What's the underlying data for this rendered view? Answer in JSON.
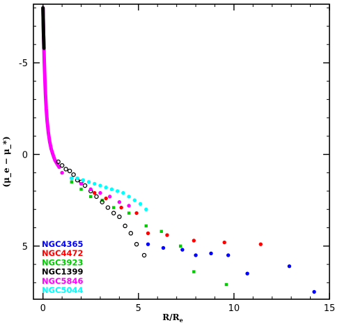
{
  "chart_data": {
    "type": "scatter",
    "title": "",
    "xlabel": "R/R_e",
    "xlabel_main": "R/R",
    "xlabel_sub": "e",
    "ylabel": "(μ_e − μ_*)",
    "xlim": [
      -0.5,
      15
    ],
    "ylim": [
      -8.2,
      7.9
    ],
    "y_inverted": true,
    "x_ticks": [
      0,
      5,
      10,
      15
    ],
    "y_ticks": [
      -5,
      0,
      5
    ],
    "x_tick_labels": [
      "0",
      "5",
      "10",
      "15"
    ],
    "y_tick_labels": [
      "-5",
      "0",
      "5"
    ],
    "legend_position": "bottom-left",
    "series": [
      {
        "name": "NGC4365",
        "color": "#0000ff",
        "marker": "filled-circle",
        "x": [
          5.5,
          6.3,
          7.3,
          8.0,
          8.8,
          9.7,
          10.7,
          12.9,
          14.2
        ],
        "y": [
          4.9,
          5.1,
          5.2,
          5.5,
          5.4,
          5.5,
          6.5,
          6.1,
          7.5
        ]
      },
      {
        "name": "NGC4472",
        "color": "#ff0000",
        "marker": "filled-circle",
        "x": [
          2.7,
          3.3,
          4.1,
          4.9,
          5.5,
          6.5,
          7.9,
          9.5,
          11.4
        ],
        "y": [
          2.1,
          2.4,
          2.9,
          3.2,
          4.3,
          4.4,
          4.7,
          4.8,
          4.9
        ]
      },
      {
        "name": "NGC3923",
        "color": "#00cc00",
        "marker": "filled-square",
        "x": [
          1.5,
          2.0,
          2.5,
          3.1,
          3.7,
          4.5,
          5.4,
          6.2,
          7.2,
          7.9,
          9.6
        ],
        "y": [
          1.5,
          1.9,
          2.3,
          2.5,
          2.9,
          3.2,
          3.9,
          4.2,
          5.0,
          6.4,
          7.1
        ]
      },
      {
        "name": "NGC1399",
        "color": "#000000",
        "marker": "open-circle",
        "x": [
          0.8,
          1.0,
          1.2,
          1.4,
          1.6,
          1.8,
          2.0,
          2.2,
          2.5,
          2.8,
          3.1,
          3.4,
          3.7,
          4.0,
          4.3,
          4.6,
          4.9,
          5.3
        ],
        "y": [
          0.4,
          0.6,
          0.8,
          0.9,
          1.1,
          1.4,
          1.5,
          1.7,
          2.0,
          2.3,
          2.6,
          2.9,
          3.2,
          3.4,
          3.9,
          4.3,
          4.9,
          5.5
        ]
      },
      {
        "name": "NGC5846",
        "color": "#ff00ff",
        "marker": "filled-circle",
        "x": [
          1.0,
          1.5,
          2.0,
          2.5,
          3.0,
          3.5,
          4.0,
          4.5
        ],
        "y": [
          1.0,
          1.3,
          1.6,
          1.9,
          2.1,
          2.3,
          2.6,
          2.8
        ]
      },
      {
        "name": "NGC5044",
        "color": "#00ffff",
        "marker": "filled-circle",
        "x": [
          1.5,
          1.8,
          2.1,
          2.4,
          2.7,
          3.0,
          3.3,
          3.6,
          3.9,
          4.2,
          4.5,
          4.8,
          5.1,
          5.4
        ],
        "y": [
          1.3,
          1.3,
          1.4,
          1.5,
          1.6,
          1.7,
          1.8,
          1.9,
          2.0,
          2.1,
          2.3,
          2.5,
          2.7,
          3.0
        ]
      }
    ],
    "central_profile": {
      "color_top": "#000000",
      "color_body": "#ff00ff",
      "x": [
        0.0,
        0.01,
        0.02,
        0.03,
        0.05,
        0.07,
        0.1,
        0.13,
        0.17,
        0.22,
        0.28,
        0.35,
        0.43,
        0.52,
        0.62,
        0.73,
        0.85
      ],
      "y": [
        -8.0,
        -7.5,
        -7.0,
        -6.5,
        -5.8,
        -5.0,
        -4.1,
        -3.3,
        -2.5,
        -1.8,
        -1.2,
        -0.7,
        -0.3,
        0.0,
        0.3,
        0.5,
        0.7
      ]
    }
  }
}
